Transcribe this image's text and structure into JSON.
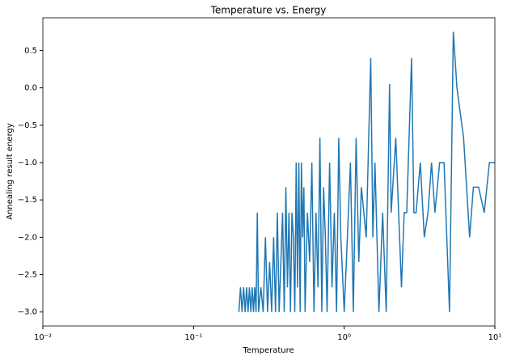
{
  "chart_data": {
    "type": "line",
    "title": "Temperature vs. Energy",
    "x_label": "Temperature",
    "y_label": "Annealing result energy",
    "xscale": "log",
    "xlim": [
      0.01,
      10
    ],
    "ylim": [
      -3.1875,
      0.9375
    ],
    "xticks": [
      {
        "value": 0.01,
        "label": "10⁻²"
      },
      {
        "value": 0.1,
        "label": "10⁻¹"
      },
      {
        "value": 1,
        "label": "10⁰"
      },
      {
        "value": 10,
        "label": "10¹"
      }
    ],
    "yticks": [
      {
        "value": -3,
        "label": "−3.0"
      },
      {
        "value": -2.5,
        "label": "−2.5"
      },
      {
        "value": -2,
        "label": "−2.0"
      },
      {
        "value": -1.5,
        "label": "−1.5"
      },
      {
        "value": -1,
        "label": "−1.0"
      },
      {
        "value": -0.5,
        "label": "−0.5"
      },
      {
        "value": 0,
        "label": "0.0"
      },
      0.5
    ],
    "x": [
      0.2,
      0.205,
      0.21,
      0.215,
      0.22,
      0.225,
      0.23,
      0.235,
      0.24,
      0.245,
      0.25,
      0.255,
      0.26,
      0.265,
      0.27,
      0.28,
      0.29,
      0.3,
      0.31,
      0.32,
      0.33,
      0.34,
      0.35,
      0.36,
      0.37,
      0.38,
      0.39,
      0.4,
      0.41,
      0.42,
      0.43,
      0.44,
      0.45,
      0.46,
      0.47,
      0.48,
      0.49,
      0.5,
      0.51,
      0.52,
      0.53,
      0.54,
      0.55,
      0.57,
      0.59,
      0.61,
      0.63,
      0.65,
      0.67,
      0.69,
      0.71,
      0.73,
      0.75,
      0.77,
      0.8,
      0.83,
      0.86,
      0.89,
      0.92,
      0.95,
      1.0,
      1.05,
      1.1,
      1.15,
      1.2,
      1.25,
      1.3,
      1.4,
      1.5,
      1.55,
      1.6,
      1.7,
      1.8,
      1.9,
      2.0,
      2.05,
      2.2,
      2.4,
      2.5,
      2.6,
      2.8,
      2.9,
      3.0,
      3.2,
      3.4,
      3.6,
      3.8,
      4.0,
      4.3,
      4.6,
      5.0,
      5.3,
      5.6,
      6.2,
      6.8,
      7.2,
      7.8,
      8.5,
      9.2,
      10.0
    ],
    "series": [
      {
        "color": "#1f77b4",
        "values": [
          -3,
          -2.67,
          -3,
          -2.67,
          -3,
          -2.67,
          -3,
          -2.67,
          -3,
          -2.67,
          -3,
          -2.67,
          -3,
          -1.67,
          -3,
          -2.67,
          -3,
          -2,
          -3,
          -2.33,
          -3,
          -2,
          -3,
          -1.67,
          -3,
          -2.33,
          -1.67,
          -3,
          -1.33,
          -2.67,
          -1.67,
          -3,
          -1.67,
          -2,
          -3,
          -1,
          -2.67,
          -1,
          -3,
          -1,
          -2,
          -1.33,
          -3,
          -1.67,
          -2.33,
          -1,
          -3,
          -1.67,
          -2.67,
          -0.67,
          -3,
          -1.33,
          -2,
          -3,
          -1,
          -2.67,
          -1.67,
          -3,
          -0.67,
          -2,
          -3,
          -2,
          -1,
          -3,
          -0.67,
          -2.33,
          -1.33,
          -2,
          0.4,
          -2,
          -1,
          -3,
          -1.67,
          -3,
          0.05,
          -1.67,
          -0.67,
          -2.67,
          -1.67,
          -1.67,
          0.4,
          -1.67,
          -1.67,
          -1,
          -2,
          -1.67,
          -1,
          -1.67,
          -1,
          -1,
          -3,
          0.75,
          0,
          -0.67,
          -2,
          -1.33,
          -1.33,
          -1.67,
          -1,
          -1
        ]
      }
    ]
  }
}
